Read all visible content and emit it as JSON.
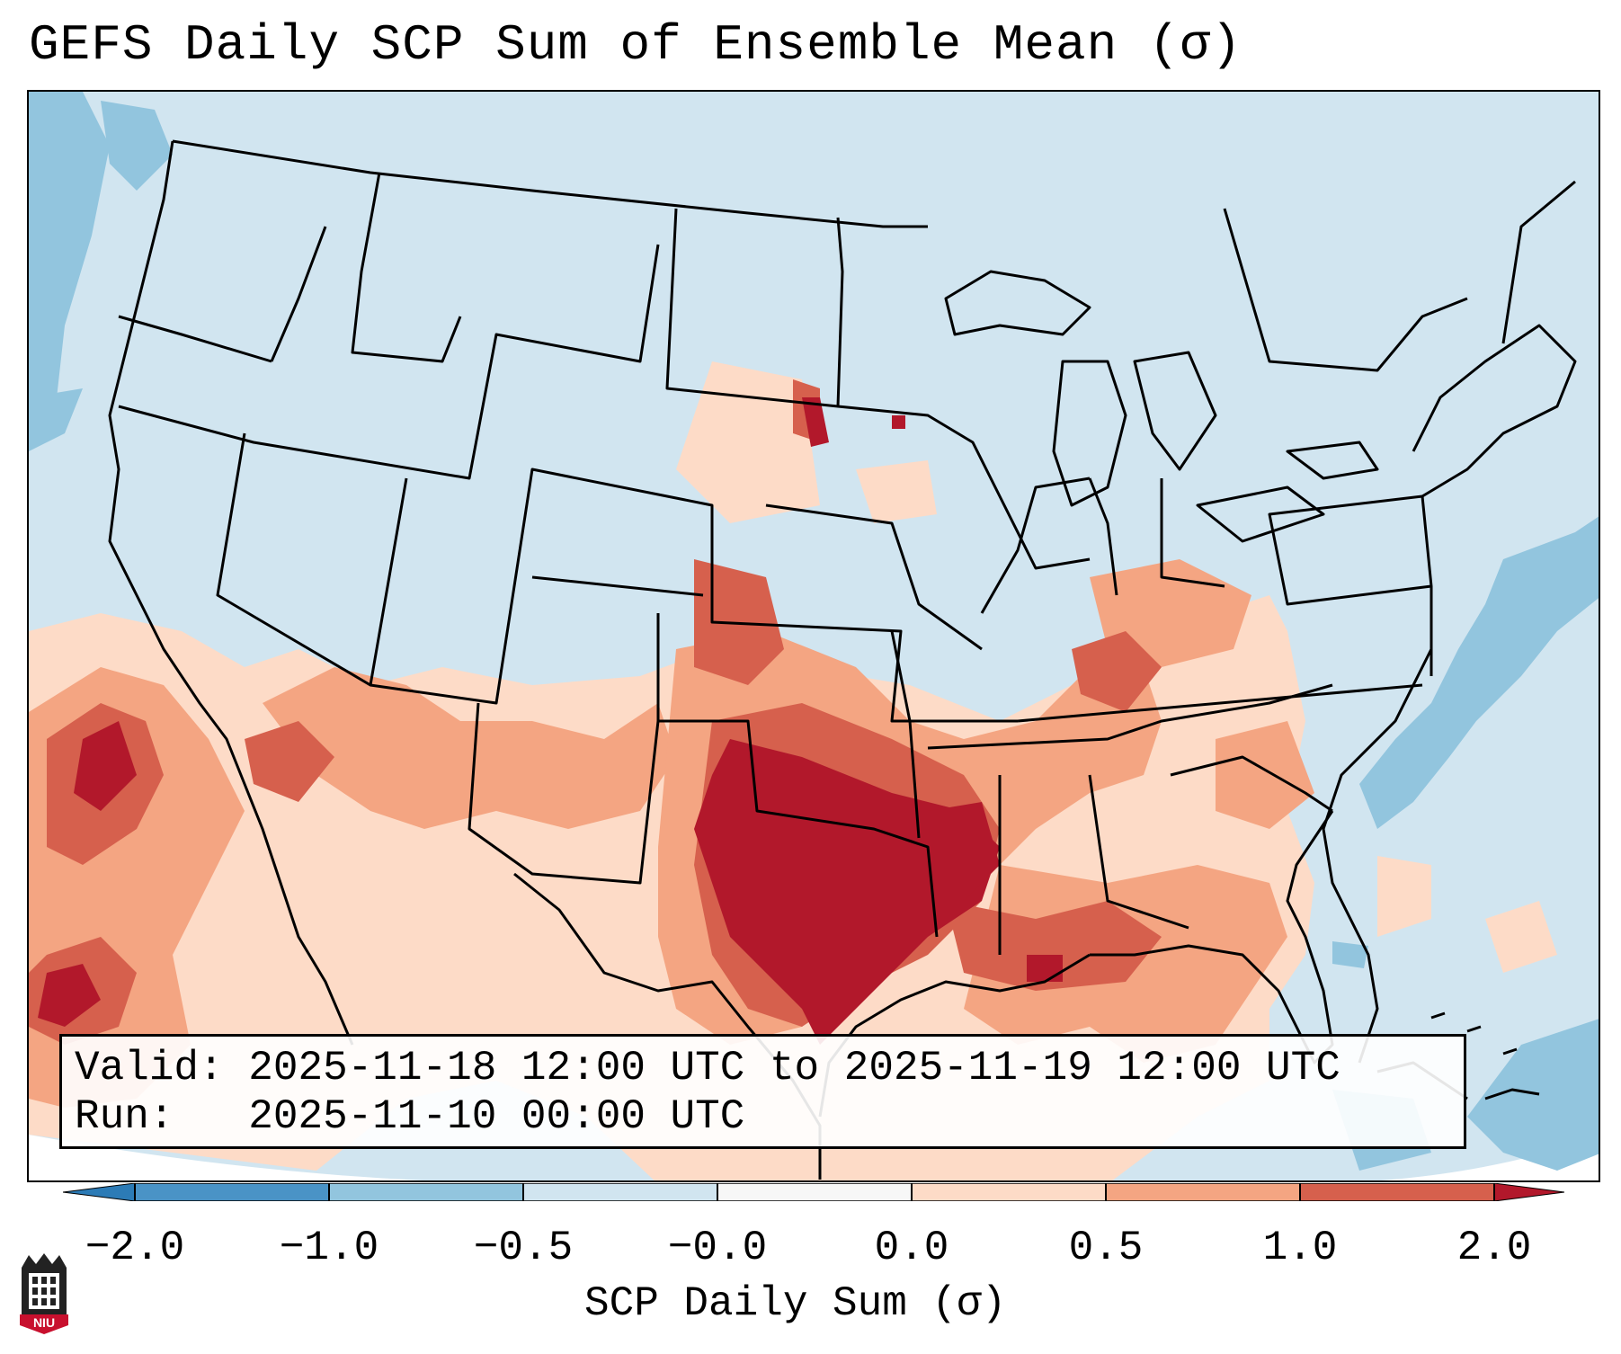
{
  "title": "GEFS Daily SCP Sum of Ensemble Mean (σ)",
  "info": {
    "valid_label": "Valid:",
    "valid_value": "2025-11-18 12:00 UTC to 2025-11-19 12:00 UTC",
    "run_label": "Run:",
    "run_value": "2025-11-10 00:00 UTC"
  },
  "colorbar": {
    "title": "SCP Daily Sum (σ)",
    "ticks": [
      "−2.0",
      "−1.0",
      "−0.5",
      "−0.0",
      "0.0",
      "0.5",
      "1.0",
      "2.0"
    ],
    "colors": [
      "#2c7bb6",
      "#4a93c6",
      "#92c5de",
      "#d1e5f0",
      "#f7f7f7",
      "#fddbc7",
      "#f4a582",
      "#d6604d",
      "#b2182b"
    ]
  },
  "map": {
    "background": "#d1e5f0",
    "anomaly_colors": {
      "strong_positive": "#b2182b",
      "positive": "#d6604d",
      "mild_positive": "#f4a582",
      "weak_positive": "#fddbc7",
      "weak_negative": "#92c5de"
    }
  },
  "logo": {
    "text": "NIU"
  }
}
